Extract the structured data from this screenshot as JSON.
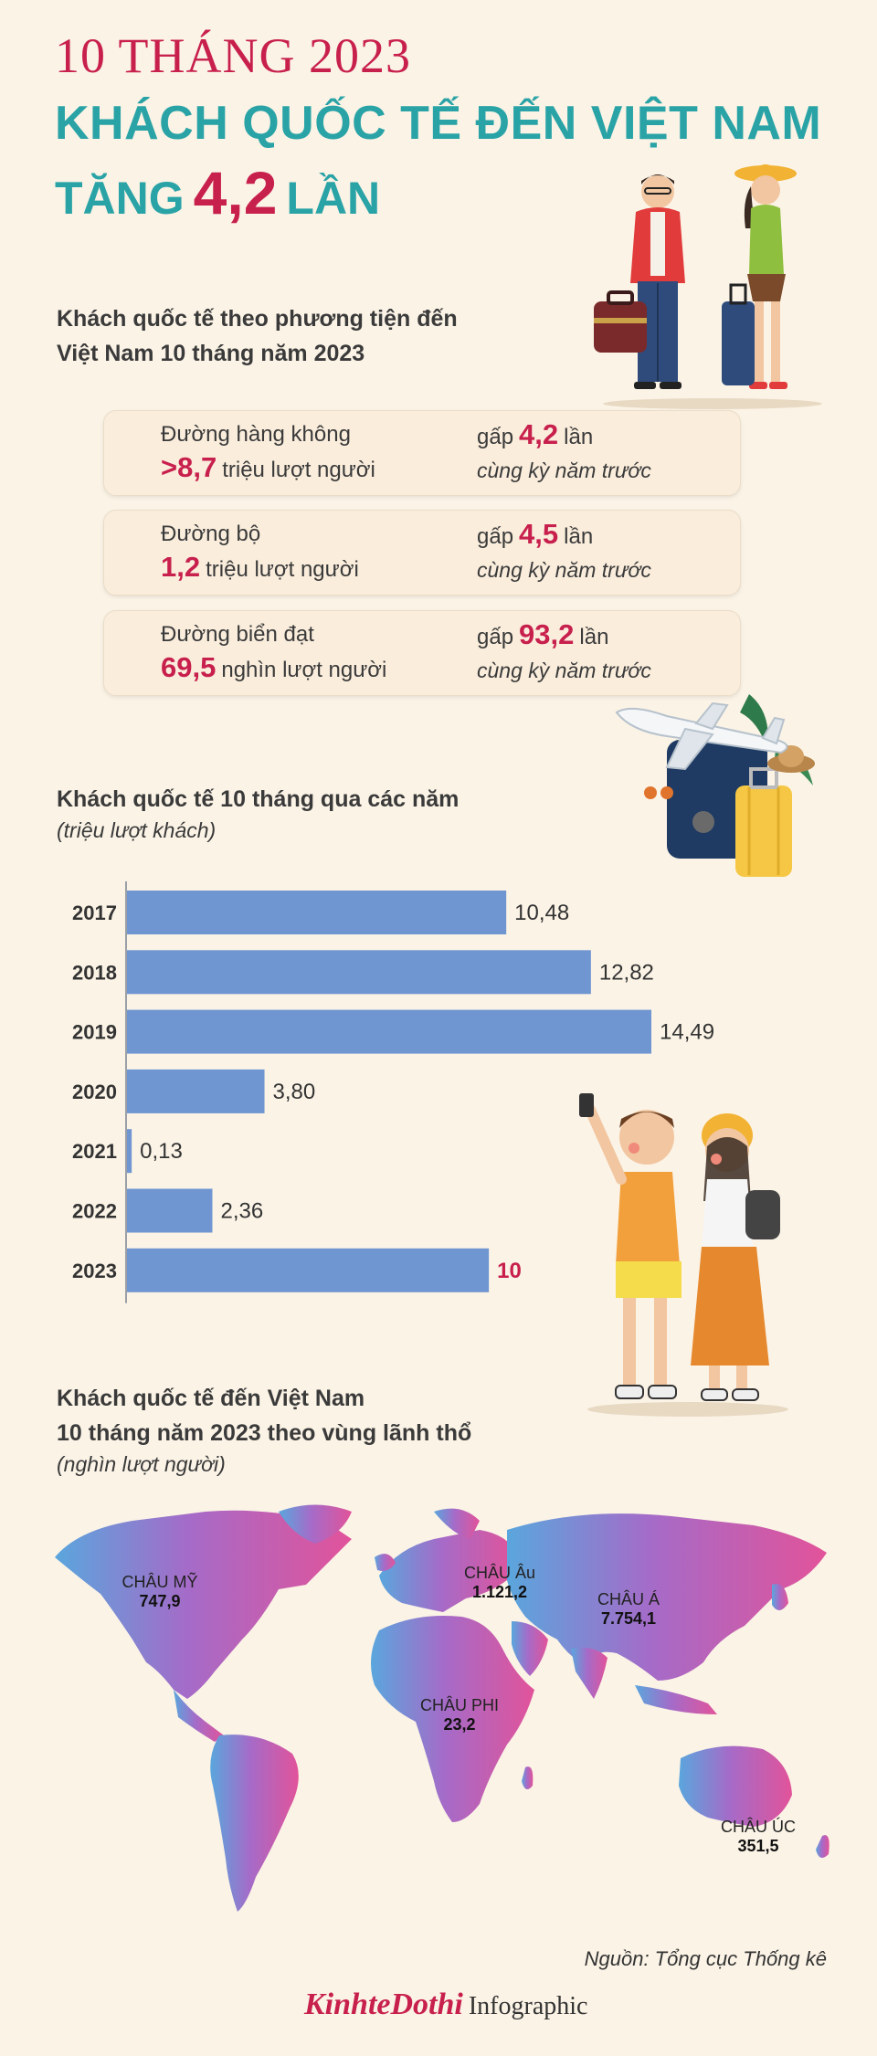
{
  "header": {
    "line1": "10 THÁNG 2023",
    "line2": "KHÁCH QUỐC TẾ ĐẾN VIỆT NAM",
    "line3_pre": "TĂNG",
    "line3_num": "4,2",
    "line3_post": "LẦN"
  },
  "transport": {
    "title_1": "Khách quốc tế theo phương tiện đến",
    "title_2": "Việt Nam 10 tháng năm 2023",
    "items": [
      {
        "label": "Đường hàng không",
        "value": ">8,7",
        "unit": "triệu lượt người",
        "mult_pre": "gấp",
        "mult": "4,2",
        "mult_post": "lần",
        "compare": "cùng kỳ năm trước"
      },
      {
        "label": "Đường bộ",
        "value": "1,2",
        "unit": "triệu lượt người",
        "mult_pre": "gấp",
        "mult": "4,5",
        "mult_post": "lần",
        "compare": "cùng kỳ năm trước"
      },
      {
        "label": "Đường biển đạt",
        "value": "69,5",
        "unit": "nghìn lượt người",
        "mult_pre": "gấp",
        "mult": "93,2",
        "mult_post": "lần",
        "compare": "cùng kỳ năm trước"
      }
    ]
  },
  "chart_data": {
    "type": "bar",
    "orientation": "horizontal",
    "title": "Khách quốc tế 10 tháng qua các năm",
    "subtitle": "(triệu lượt khách)",
    "categories": [
      "2017",
      "2018",
      "2019",
      "2020",
      "2021",
      "2022",
      "2023"
    ],
    "values": [
      10.48,
      12.82,
      14.49,
      3.8,
      0.13,
      2.36,
      10
    ],
    "value_labels": [
      "10,48",
      "12,82",
      "14,49",
      "3,80",
      "0,13",
      "2,36",
      "10"
    ],
    "highlight_index": 6,
    "xlim": [
      0,
      14.49
    ],
    "bar_color": "#6f96d1",
    "highlight_label_color": "#c8204d"
  },
  "regions": {
    "title_1": "Khách quốc tế đến Việt Nam",
    "title_2": "10 tháng năm 2023 theo vùng lãnh thổ",
    "subtitle": "(nghìn lượt người)",
    "items": [
      {
        "name": "CHÂU MỸ",
        "value": "747,9"
      },
      {
        "name": "CHÂU Âu",
        "value": "1.121,2"
      },
      {
        "name": "CHÂU Á",
        "value": "7.754,1"
      },
      {
        "name": "CHÂU PHI",
        "value": "23,2"
      },
      {
        "name": "CHÂU ÚC",
        "value": "351,5"
      }
    ]
  },
  "footer": {
    "source": "Nguồn: Tổng cục Thống kê",
    "brand": "KinhteDothi",
    "brand_suffix": "Infographic"
  },
  "colors": {
    "background": "#fbf3e6",
    "accent_red": "#c8204d",
    "accent_teal": "#2aa3a6",
    "bar": "#6f96d1",
    "map_gradient_start": "#5aa6dd",
    "map_gradient_mid": "#a56bc8",
    "map_gradient_end": "#e2539a"
  }
}
